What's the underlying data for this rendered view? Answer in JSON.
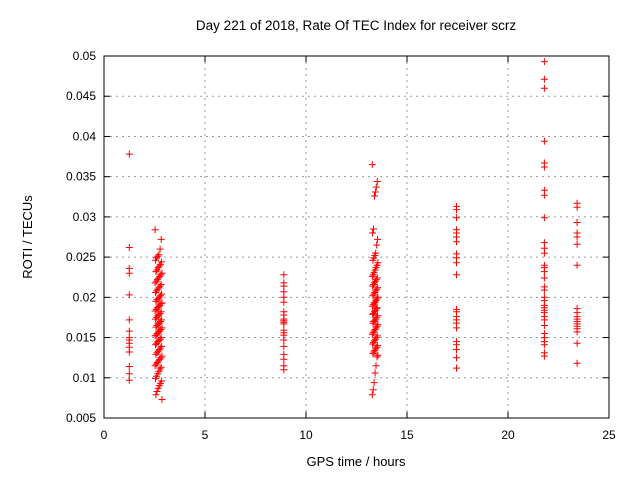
{
  "chart_data": {
    "type": "scatter",
    "title": "Day 221 of 2018, Rate Of TEC Index for receiver scrz",
    "xlabel": "GPS time / hours",
    "ylabel": "ROTI / TECUs",
    "xlim": [
      0,
      25
    ],
    "ylim": [
      0.005,
      0.05
    ],
    "x_ticks": [
      0,
      5,
      10,
      15,
      20,
      25
    ],
    "x_tick_labels": [
      "0",
      "5",
      "10",
      "15",
      "20",
      "25"
    ],
    "y_ticks": [
      0.005,
      0.01,
      0.015,
      0.02,
      0.025,
      0.03,
      0.035,
      0.04,
      0.045,
      0.05
    ],
    "y_tick_labels": [
      "0.005",
      "0.01",
      "0.015",
      "0.02",
      "0.025",
      "0.03",
      "0.035",
      "0.04",
      "0.045",
      "0.05"
    ],
    "grid": true,
    "legend": "none",
    "marker": {
      "shape": "plus",
      "color": "#ff0000",
      "size": 7
    },
    "series": [
      {
        "name": "ROTI",
        "clusters": [
          {
            "x": 1.25,
            "spread": 0,
            "values": [
              0.0378,
              0.0262,
              0.0236,
              0.023,
              0.0203,
              0.0172,
              0.0158,
              0.015,
              0.0147,
              0.0143,
              0.0138,
              0.0132,
              0.0114,
              0.0105,
              0.0097
            ]
          },
          {
            "x": 2.7,
            "spread": 0.17,
            "values": [
              0.0284,
              0.0272,
              0.026,
              0.0253,
              0.0251,
              0.0249,
              0.0246,
              0.0244,
              0.0241,
              0.0239,
              0.0237,
              0.0234,
              0.0232,
              0.023,
              0.0228,
              0.0226,
              0.0224,
              0.0222,
              0.022,
              0.0218,
              0.0216,
              0.0214,
              0.0212,
              0.021,
              0.0208,
              0.0206,
              0.0204,
              0.0202,
              0.02,
              0.0198,
              0.0197,
              0.0195,
              0.0193,
              0.0192,
              0.019,
              0.0188,
              0.0187,
              0.0185,
              0.0183,
              0.0182,
              0.018,
              0.0178,
              0.0177,
              0.0175,
              0.0173,
              0.0172,
              0.017,
              0.0168,
              0.0167,
              0.0165,
              0.0163,
              0.0162,
              0.016,
              0.0158,
              0.0157,
              0.0155,
              0.0153,
              0.0152,
              0.015,
              0.0148,
              0.0146,
              0.0145,
              0.0143,
              0.0141,
              0.0139,
              0.0137,
              0.0135,
              0.0133,
              0.0131,
              0.0129,
              0.0127,
              0.0125,
              0.0123,
              0.0121,
              0.0119,
              0.0117,
              0.0115,
              0.0113,
              0.0111,
              0.0108,
              0.0105,
              0.0102,
              0.0099,
              0.0096,
              0.0093,
              0.009,
              0.0087,
              0.0083,
              0.0079,
              0.0073
            ]
          },
          {
            "x": 8.9,
            "spread": 0,
            "values": [
              0.0228,
              0.0218,
              0.0214,
              0.0207,
              0.02,
              0.0194,
              0.0182,
              0.0178,
              0.0173,
              0.0171,
              0.0169,
              0.0167,
              0.0159,
              0.0156,
              0.0153,
              0.0147,
              0.0139,
              0.0129,
              0.0123,
              0.0115,
              0.011
            ]
          },
          {
            "x": 13.42,
            "spread": 0.14,
            "values": [
              0.0365,
              0.0344,
              0.0337,
              0.0331,
              0.0326,
              0.0285,
              0.028,
              0.0272,
              0.0265,
              0.0255,
              0.0252,
              0.0249,
              0.0246,
              0.0243,
              0.024,
              0.0237,
              0.0234,
              0.0231,
              0.0228,
              0.0226,
              0.0224,
              0.0222,
              0.022,
              0.0218,
              0.0216,
              0.0214,
              0.0212,
              0.021,
              0.0208,
              0.0206,
              0.0204,
              0.0202,
              0.02,
              0.0198,
              0.0196,
              0.0194,
              0.0193,
              0.0191,
              0.0189,
              0.0187,
              0.0186,
              0.0184,
              0.0182,
              0.018,
              0.0179,
              0.0177,
              0.0175,
              0.0173,
              0.0171,
              0.017,
              0.0168,
              0.0166,
              0.0164,
              0.0162,
              0.016,
              0.0158,
              0.0156,
              0.0154,
              0.0152,
              0.015,
              0.0148,
              0.0146,
              0.0144,
              0.0142,
              0.014,
              0.0138,
              0.0136,
              0.0134,
              0.0132,
              0.013,
              0.0128,
              0.0126,
              0.0115,
              0.0106,
              0.0094,
              0.0085,
              0.0079
            ]
          },
          {
            "x": 17.45,
            "spread": 0,
            "values": [
              0.0313,
              0.0309,
              0.0299,
              0.0284,
              0.028,
              0.0275,
              0.0269,
              0.0254,
              0.0249,
              0.0243,
              0.0228,
              0.0185,
              0.0182,
              0.0176,
              0.0172,
              0.0168,
              0.0162,
              0.0145,
              0.0141,
              0.0135,
              0.0125,
              0.0112
            ]
          },
          {
            "x": 21.8,
            "spread": 0,
            "values": [
              0.0493,
              0.0471,
              0.046,
              0.0394,
              0.0367,
              0.0362,
              0.0333,
              0.0327,
              0.0299,
              0.0268,
              0.0261,
              0.0255,
              0.024,
              0.0237,
              0.0232,
              0.0224,
              0.0213,
              0.0209,
              0.02,
              0.0196,
              0.019,
              0.0187,
              0.0184,
              0.0181,
              0.0176,
              0.0172,
              0.0165,
              0.0155,
              0.015,
              0.0145,
              0.0141,
              0.0131,
              0.0127
            ]
          },
          {
            "x": 23.42,
            "spread": 0,
            "values": [
              0.0317,
              0.0312,
              0.0293,
              0.028,
              0.0275,
              0.0266,
              0.024,
              0.0186,
              0.0181,
              0.0176,
              0.0173,
              0.017,
              0.0167,
              0.0164,
              0.0161,
              0.0157,
              0.0143,
              0.0118
            ]
          }
        ]
      }
    ],
    "colors": {
      "marker": "#ff0000",
      "frame": "#000000",
      "grid": "#9a9a9a",
      "background": "#ffffff"
    }
  }
}
